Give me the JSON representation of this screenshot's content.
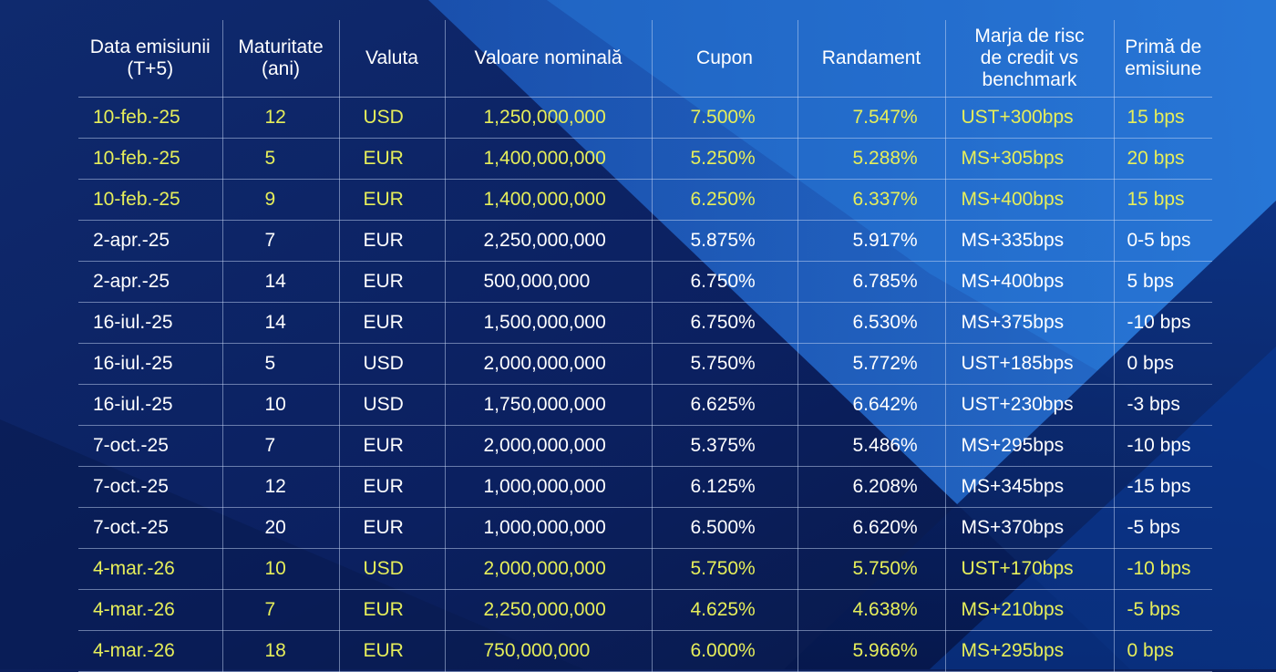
{
  "headers": {
    "date": [
      "Data emisiunii",
      "(T+5)"
    ],
    "maturity": [
      "Maturitate",
      "(ani)"
    ],
    "currency": [
      "Valuta"
    ],
    "nominal": [
      "Valoare nominală"
    ],
    "coupon": [
      "Cupon"
    ],
    "yield": [
      "Randament"
    ],
    "spread": [
      "Marja de risc",
      "de credit vs",
      "benchmark"
    ],
    "premium": [
      "Primă de",
      "emisiune"
    ]
  },
  "colors": {
    "highlight_text": "#e6ee5a",
    "standard_text": "#ffffff",
    "background": "#0b1f5c"
  },
  "rows": [
    {
      "highlight": true,
      "date": "10-feb.-25",
      "maturity": "12",
      "currency": "USD",
      "nominal": "1,250,000,000",
      "coupon": "7.500%",
      "yield": "7.547%",
      "spread": "UST+300bps",
      "premium": "15 bps"
    },
    {
      "highlight": true,
      "date": "10-feb.-25",
      "maturity": "5",
      "currency": "EUR",
      "nominal": "1,400,000,000",
      "coupon": "5.250%",
      "yield": "5.288%",
      "spread": "MS+305bps",
      "premium": "20 bps"
    },
    {
      "highlight": true,
      "date": "10-feb.-25",
      "maturity": "9",
      "currency": "EUR",
      "nominal": "1,400,000,000",
      "coupon": "6.250%",
      "yield": "6.337%",
      "spread": "MS+400bps",
      "premium": "15 bps"
    },
    {
      "highlight": false,
      "date": "2-apr.-25",
      "maturity": "7",
      "currency": "EUR",
      "nominal": "2,250,000,000",
      "coupon": "5.875%",
      "yield": "5.917%",
      "spread": "MS+335bps",
      "premium": "0-5 bps"
    },
    {
      "highlight": false,
      "date": "2-apr.-25",
      "maturity": "14",
      "currency": "EUR",
      "nominal": "500,000,000",
      "coupon": "6.750%",
      "yield": "6.785%",
      "spread": "MS+400bps",
      "premium": "5 bps"
    },
    {
      "highlight": false,
      "date": "16-iul.-25",
      "maturity": "14",
      "currency": "EUR",
      "nominal": "1,500,000,000",
      "coupon": "6.750%",
      "yield": "6.530%",
      "spread": "MS+375bps",
      "premium": "-10 bps"
    },
    {
      "highlight": false,
      "date": "16-iul.-25",
      "maturity": "5",
      "currency": "USD",
      "nominal": "2,000,000,000",
      "coupon": "5.750%",
      "yield": "5.772%",
      "spread": "UST+185bps",
      "premium": "0 bps"
    },
    {
      "highlight": false,
      "date": "16-iul.-25",
      "maturity": "10",
      "currency": "USD",
      "nominal": "1,750,000,000",
      "coupon": "6.625%",
      "yield": "6.642%",
      "spread": "UST+230bps",
      "premium": "-3 bps"
    },
    {
      "highlight": false,
      "date": "7-oct.-25",
      "maturity": "7",
      "currency": "EUR",
      "nominal": "2,000,000,000",
      "coupon": "5.375%",
      "yield": "5.486%",
      "spread": "MS+295bps",
      "premium": "-10 bps"
    },
    {
      "highlight": false,
      "date": "7-oct.-25",
      "maturity": "12",
      "currency": "EUR",
      "nominal": "1,000,000,000",
      "coupon": "6.125%",
      "yield": "6.208%",
      "spread": "MS+345bps",
      "premium": "-15 bps"
    },
    {
      "highlight": false,
      "date": "7-oct.-25",
      "maturity": "20",
      "currency": "EUR",
      "nominal": "1,000,000,000",
      "coupon": "6.500%",
      "yield": "6.620%",
      "spread": "MS+370bps",
      "premium": "-5 bps"
    },
    {
      "highlight": true,
      "date": "4-mar.-26",
      "maturity": "10",
      "currency": "USD",
      "nominal": "2,000,000,000",
      "coupon": "5.750%",
      "yield": "5.750%",
      "spread": "UST+170bps",
      "premium": "-10 bps"
    },
    {
      "highlight": true,
      "date": "4-mar.-26",
      "maturity": "7",
      "currency": "EUR",
      "nominal": "2,250,000,000",
      "coupon": "4.625%",
      "yield": "4.638%",
      "spread": "MS+210bps",
      "premium": "-5 bps"
    },
    {
      "highlight": true,
      "date": "4-mar.-26",
      "maturity": "18",
      "currency": "EUR",
      "nominal": "750,000,000",
      "coupon": "6.000%",
      "yield": "5.966%",
      "spread": "MS+295bps",
      "premium": "0 bps"
    }
  ]
}
